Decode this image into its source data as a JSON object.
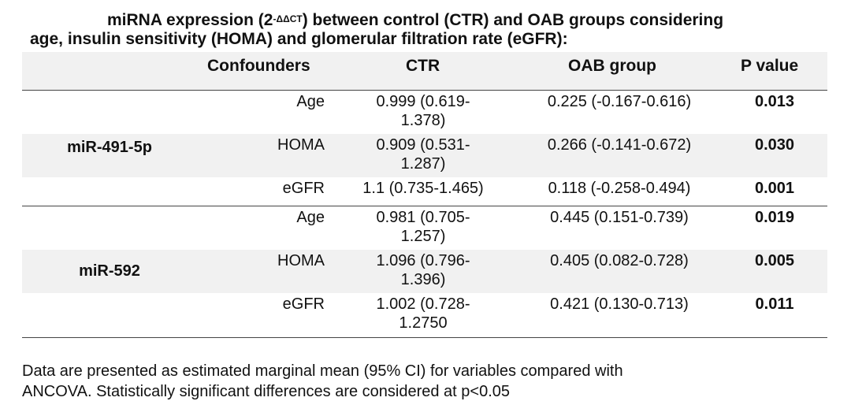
{
  "title": {
    "prefix": "miRNA expression (2",
    "sup": "-ΔΔCT",
    "suffix": ") between control (CTR) and OAB groups considering",
    "line2": "age, insulin sensitivity (HOMA) and glomerular filtration rate (eGFR):"
  },
  "headers": {
    "confounders": "Confounders",
    "ctr": "CTR",
    "oab": "OAB group",
    "p": "P value"
  },
  "groups": [
    {
      "label": "miR-491-5p",
      "rows": [
        {
          "conf": "Age",
          "ctr": "0.999 (0.619-\n1.378)",
          "oab": "0.225 (-0.167-0.616)",
          "p": "0.013"
        },
        {
          "conf": "HOMA",
          "ctr": "0.909 (0.531-\n1.287)",
          "oab": "0.266 (-0.141-0.672)",
          "p": "0.030"
        },
        {
          "conf": "eGFR",
          "ctr": "1.1 (0.735-1.465)",
          "oab": "0.118 (-0.258-0.494)",
          "p": "0.001"
        }
      ]
    },
    {
      "label": "miR-592",
      "rows": [
        {
          "conf": "Age",
          "ctr": "0.981 (0.705-\n1.257)",
          "oab": "0.445 (0.151-0.739)",
          "p": "0.019"
        },
        {
          "conf": "HOMA",
          "ctr": "1.096 (0.796-\n1.396)",
          "oab": "0.405 (0.082-0.728)",
          "p": "0.005"
        },
        {
          "conf": "eGFR",
          "ctr": "1.002 (0.728-\n1.2750",
          "oab": "0.421 (0.130-0.713)",
          "p": "0.011"
        }
      ]
    }
  ],
  "note": {
    "line1": "Data are presented as estimated marginal mean (95% CI) for variables compared with",
    "line2": "ANCOVA. Statistically significant differences are considered at p<0.05"
  }
}
